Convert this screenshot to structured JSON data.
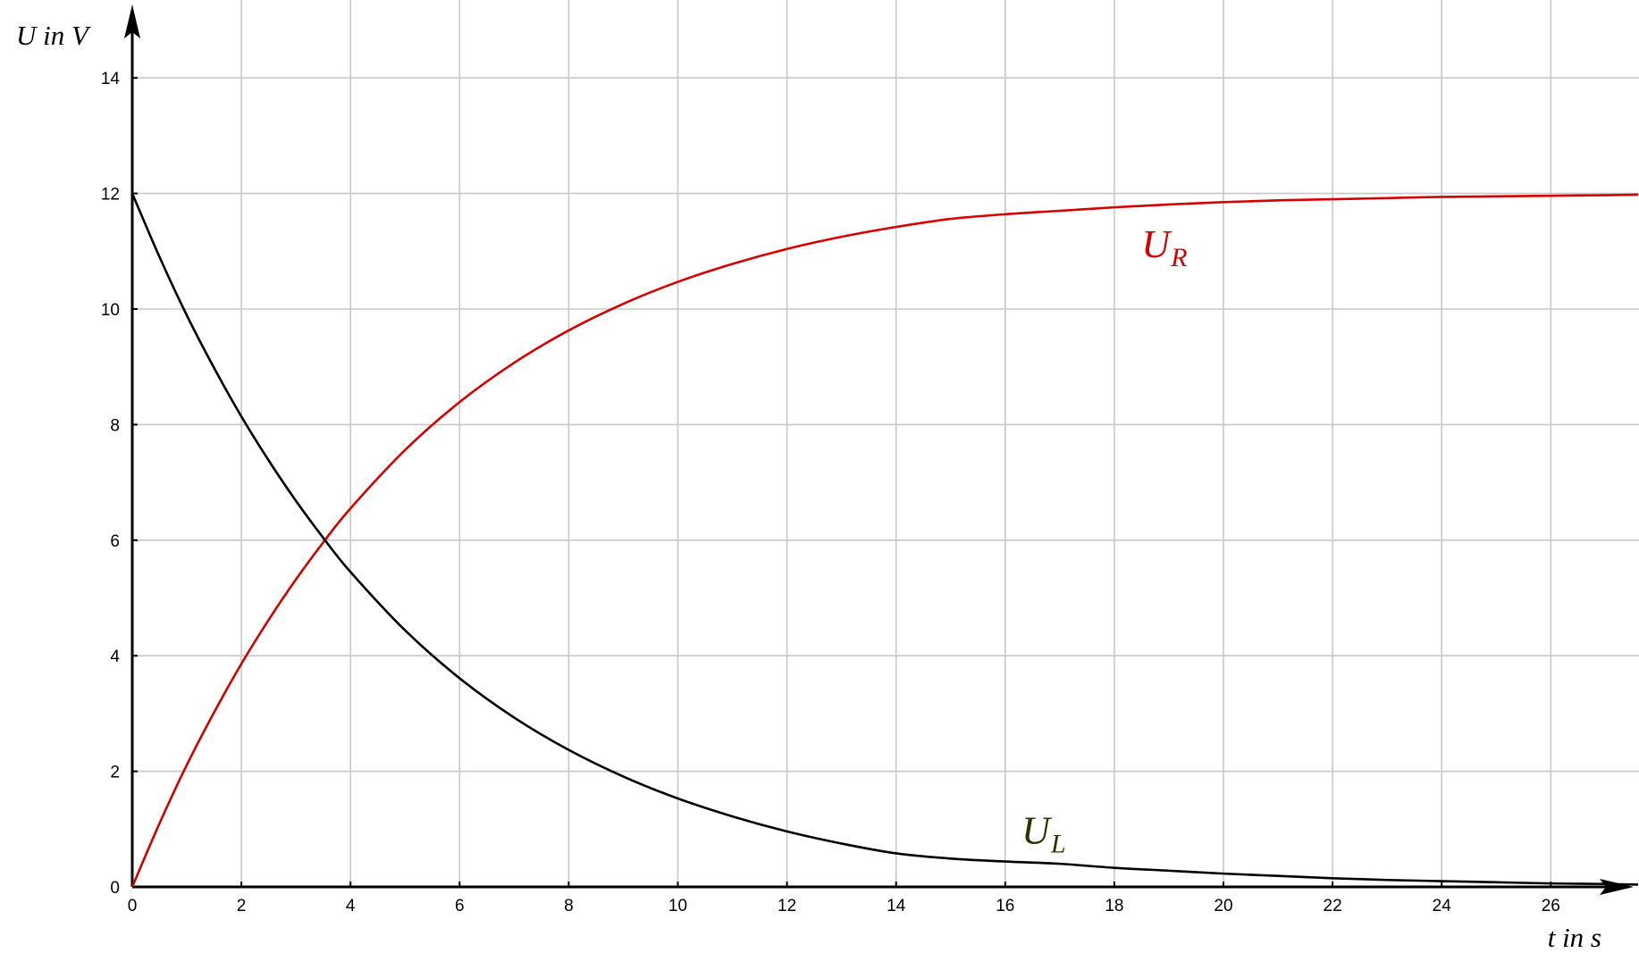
{
  "chart_data": {
    "type": "line",
    "xlabel": "t in s",
    "ylabel": "U in V",
    "xlim": [
      0,
      27.6
    ],
    "ylim": [
      0,
      14
    ],
    "x_ticks": [
      0,
      2,
      4,
      6,
      8,
      10,
      12,
      14,
      16,
      18,
      20,
      22,
      24,
      26
    ],
    "y_ticks": [
      0,
      2,
      4,
      6,
      8,
      10,
      12,
      14
    ],
    "grid": true,
    "series": [
      {
        "name": "U_R",
        "label_main": "U",
        "label_sub": "R",
        "color": "#d40000",
        "x": [
          0,
          0.5,
          1,
          1.5,
          2,
          2.5,
          3,
          3.5,
          4,
          5,
          6,
          7,
          8,
          9,
          10,
          11,
          12,
          13,
          14,
          15,
          16,
          17,
          18,
          19,
          20,
          21,
          22,
          23,
          24,
          25,
          26,
          27,
          27.6
        ],
        "values": [
          0,
          1.1,
          2.11,
          3.02,
          3.86,
          4.62,
          5.32,
          5.96,
          6.55,
          7.56,
          8.39,
          9.07,
          9.63,
          10.09,
          10.47,
          10.78,
          11.04,
          11.25,
          11.42,
          11.56,
          11.64,
          11.7,
          11.76,
          11.81,
          11.85,
          11.88,
          11.9,
          11.92,
          11.94,
          11.95,
          11.96,
          11.97,
          11.98
        ]
      },
      {
        "name": "U_L",
        "label_main": "U",
        "label_sub": "L",
        "color": "#000000",
        "x": [
          0,
          0.5,
          1,
          1.5,
          2,
          2.5,
          3,
          3.5,
          4,
          5,
          6,
          7,
          8,
          9,
          10,
          11,
          12,
          13,
          14,
          15,
          16,
          17,
          18,
          19,
          20,
          21,
          22,
          23,
          24,
          25,
          26,
          27,
          27.6
        ],
        "values": [
          12,
          10.9,
          9.89,
          8.98,
          8.14,
          7.38,
          6.68,
          6.04,
          5.45,
          4.44,
          3.61,
          2.93,
          2.37,
          1.91,
          1.53,
          1.22,
          0.96,
          0.75,
          0.58,
          0.49,
          0.44,
          0.4,
          0.33,
          0.28,
          0.23,
          0.19,
          0.15,
          0.12,
          0.1,
          0.08,
          0.06,
          0.05,
          0.04
        ]
      }
    ]
  },
  "colors": {
    "grid": "#c8c8c8",
    "axis": "#000000",
    "u_r": "#d40000",
    "u_l_label": "#2c3300"
  }
}
